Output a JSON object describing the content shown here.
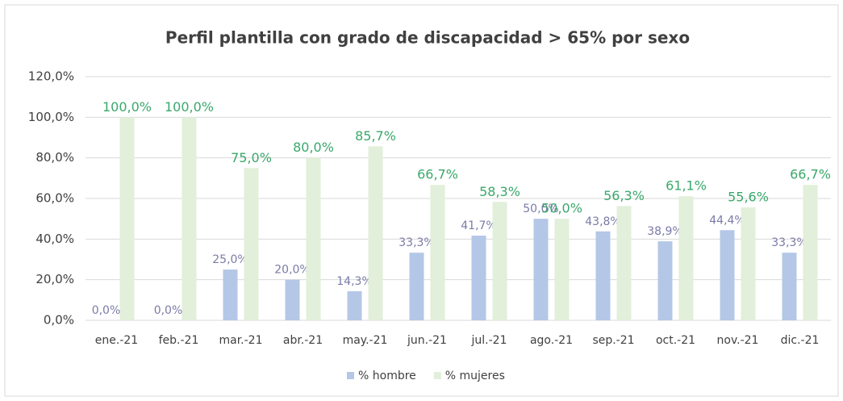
{
  "chart_data": {
    "type": "bar",
    "title": "Perfil plantilla con grado de discapacidad > 65% por sexo",
    "categories": [
      "ene.-21",
      "feb.-21",
      "mar.-21",
      "abr.-21",
      "may.-21",
      "jun.-21",
      "jul.-21",
      "ago.-21",
      "sep.-21",
      "oct.-21",
      "nov.-21",
      "dic.-21"
    ],
    "series": [
      {
        "name": "% hombre",
        "color": "#b4c7e7",
        "label_color": "#7b7ba8",
        "values": [
          0,
          0,
          25,
          20,
          14.3,
          33.3,
          41.7,
          50,
          43.8,
          38.9,
          44.4,
          33.3
        ],
        "value_labels": [
          "0,0%",
          "0,0%",
          "25,0%",
          "20,0%",
          "14,3%",
          "33,3%",
          "41,7%",
          "50,0%",
          "43,8%",
          "38,9%",
          "44,4%",
          "33,3%"
        ]
      },
      {
        "name": "% mujeres",
        "color": "#e2efda",
        "label_color": "#3aa86b",
        "values": [
          100,
          100,
          75,
          80,
          85.7,
          66.7,
          58.3,
          50,
          56.3,
          61.1,
          55.6,
          66.7
        ],
        "value_labels": [
          "100,0%",
          "100,0%",
          "75,0%",
          "80,0%",
          "85,7%",
          "66,7%",
          "58,3%",
          "50,0%",
          "56,3%",
          "61,1%",
          "55,6%",
          "66,7%"
        ]
      }
    ],
    "ylim": [
      0,
      120
    ],
    "yticks": [
      {
        "value": 0,
        "label": "0,0%"
      },
      {
        "value": 20,
        "label": "20,0%"
      },
      {
        "value": 40,
        "label": "40,0%"
      },
      {
        "value": 60,
        "label": "60,0%"
      },
      {
        "value": 80,
        "label": "80,0%"
      },
      {
        "value": 100,
        "label": "100,0%"
      },
      {
        "value": 120,
        "label": "120,0%"
      }
    ],
    "grid": true,
    "legend": "bottom"
  }
}
